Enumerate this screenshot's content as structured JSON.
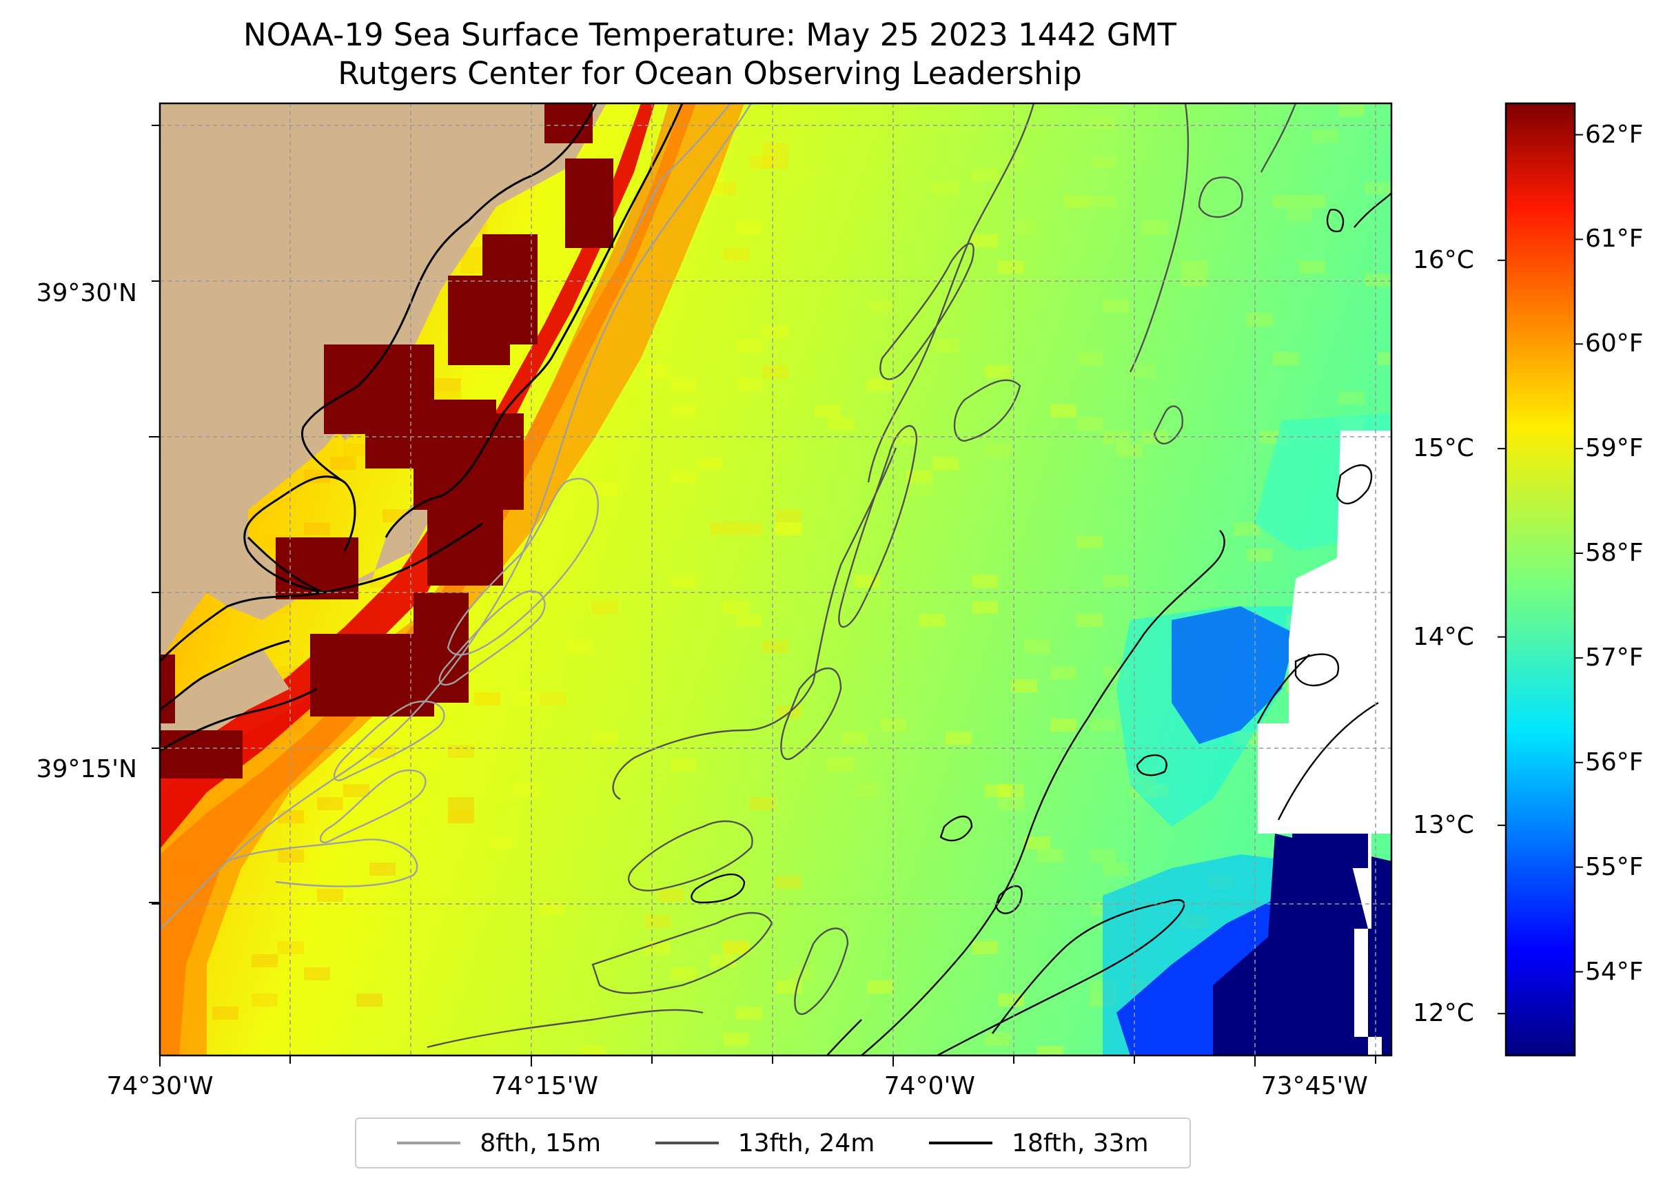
{
  "title": {
    "line1": "NOAA-19 Sea Surface Temperature: May 25 2023 1442 GMT",
    "line2": "Rutgers Center for Ocean Observing Leadership"
  },
  "map": {
    "lon_range": [
      -74.5,
      -73.7
    ],
    "lat_range": [
      39.1,
      39.6
    ],
    "lon_ticks": [
      {
        "value": -74.5,
        "label": "74°30'W"
      },
      {
        "value": -74.25,
        "label": "74°15'W"
      },
      {
        "value": -74.0,
        "label": "74°0'W"
      },
      {
        "value": -73.75,
        "label": "73°45'W"
      }
    ],
    "lat_ticks": [
      {
        "value": 39.5,
        "label": "39°30'N"
      },
      {
        "value": 39.25,
        "label": "39°15'N"
      }
    ],
    "gridlines": "dashed",
    "land_color": "#d2b48c",
    "no_data_color": "#ffffff"
  },
  "colorbar": {
    "colormap": "jet",
    "celsius_ticks": [
      {
        "value": 12,
        "label": "12°C"
      },
      {
        "value": 13,
        "label": "13°C"
      },
      {
        "value": 14,
        "label": "14°C"
      },
      {
        "value": 15,
        "label": "15°C"
      },
      {
        "value": 16,
        "label": "16°C"
      }
    ],
    "fahrenheit_ticks": [
      {
        "value": 54,
        "label": "54°F"
      },
      {
        "value": 55,
        "label": "55°F"
      },
      {
        "value": 56,
        "label": "56°F"
      },
      {
        "value": 57,
        "label": "57°F"
      },
      {
        "value": 58,
        "label": "58°F"
      },
      {
        "value": 59,
        "label": "59°F"
      },
      {
        "value": 60,
        "label": "60°F"
      },
      {
        "value": 61,
        "label": "61°F"
      },
      {
        "value": 62,
        "label": "62°F"
      }
    ],
    "range_f": [
      53.2,
      62.3
    ]
  },
  "legend": {
    "items": [
      {
        "label": "8fth, 15m",
        "color": "#a0a0a0"
      },
      {
        "label": "13fth, 24m",
        "color": "#505050"
      },
      {
        "label": "18fth, 33m",
        "color": "#000000"
      }
    ]
  }
}
